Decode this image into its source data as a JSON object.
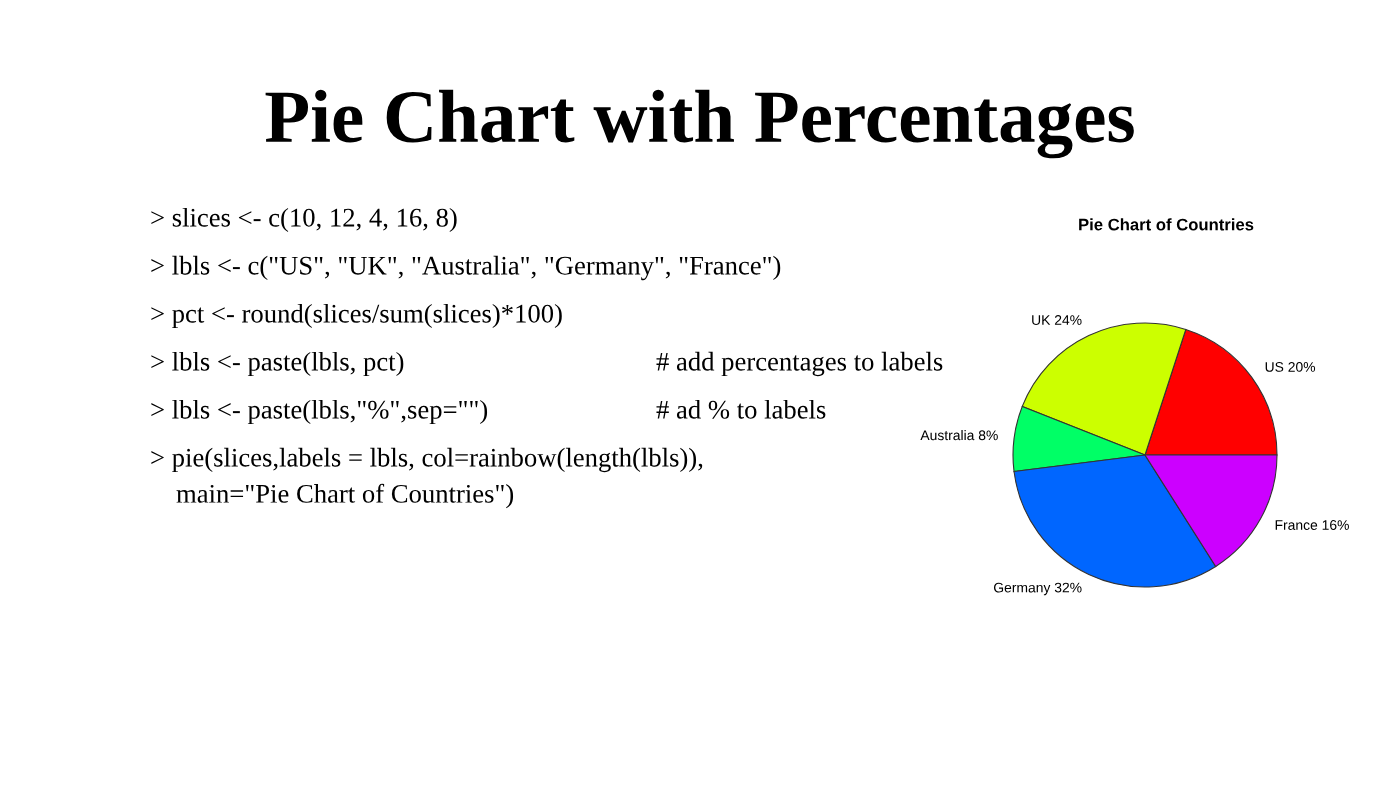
{
  "chart_data": {
    "type": "pie",
    "title": "Pie Chart of Countries",
    "categories": [
      "US",
      "UK",
      "Australia",
      "Germany",
      "France"
    ],
    "values": [
      20,
      24,
      8,
      32,
      16
    ],
    "value_labels": [
      "20%",
      "24%",
      "8%",
      "32%",
      "16%"
    ],
    "colors": [
      "#ff0000",
      "#ccff00",
      "#00ff66",
      "#0066ff",
      "#cc00ff"
    ],
    "annotations": [
      "Pie Chart with Percentages",
      "> slices <- c(10, 12, 4, 16, 8)",
      "> lbls <- c(\"US\", \"UK\", \"Australia\", \"Germany\", \"France\")",
      "> pct <- round(slices/sum(slices)*100)",
      "> lbls <- paste(lbls, pct)",
      "# add percentages to labels",
      "> lbls <- paste(lbls,\"%\",sep=\"\")",
      "# ad % to labels",
      "> pie(slices,labels = lbls, col=rainbow(length(lbls)),",
      "main=\"Pie Chart of Countries\")"
    ]
  }
}
